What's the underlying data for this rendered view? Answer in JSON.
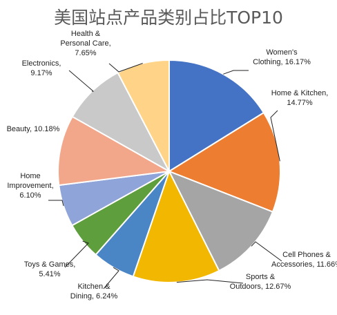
{
  "chart_data": {
    "type": "pie",
    "title": "美国站点产品类别占比TOP10",
    "slices": [
      {
        "label": "Women's Clothing",
        "value": 16.17,
        "value_label": "16.17%",
        "color": "#4472C4"
      },
      {
        "label": "Home & Kitchen",
        "value": 14.77,
        "value_label": "14.77%",
        "color": "#ED7D31"
      },
      {
        "label": "Cell Phones & Accessories",
        "value": 11.66,
        "value_label": "11.66%",
        "color": "#A5A5A5"
      },
      {
        "label": "Sports & Outdoors",
        "value": 12.67,
        "value_label": "12.67%",
        "color": "#F2B700"
      },
      {
        "label": "Kitchen & Dining",
        "value": 6.24,
        "value_label": "6.24%",
        "color": "#4A86C5"
      },
      {
        "label": "Toys & Games",
        "value": 5.41,
        "value_label": "5.41%",
        "color": "#5E9E3C"
      },
      {
        "label": "Home Improvement",
        "value": 6.1,
        "value_label": "6.10%",
        "color": "#8FA4D8"
      },
      {
        "label": "Beauty",
        "value": 10.18,
        "value_label": "10.18%",
        "color": "#F2A68A"
      },
      {
        "label": "Electronics",
        "value": 9.17,
        "value_label": "9.17%",
        "color": "#C9C9C9"
      },
      {
        "label": "Health & Personal Care",
        "value": 7.65,
        "value_label": "7.65%",
        "color": "#FFD488"
      }
    ]
  }
}
